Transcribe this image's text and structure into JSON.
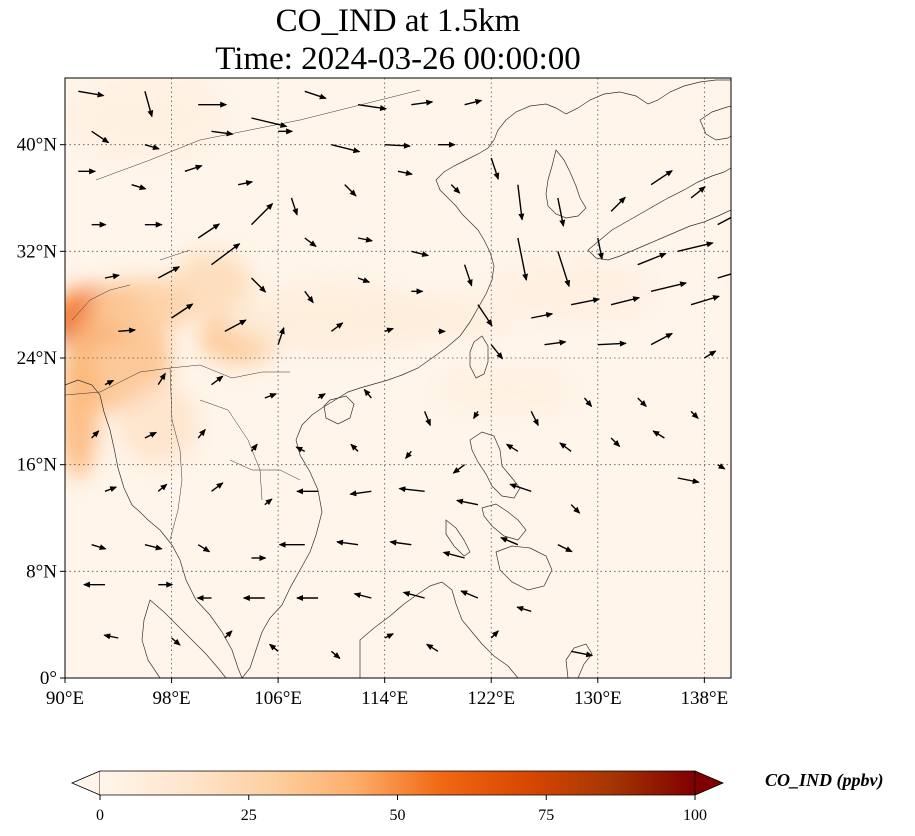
{
  "title": {
    "line1": "CO_IND at 1.5km",
    "line2": "Time: 2024-03-26 00:00:00"
  },
  "map": {
    "lon_range": [
      90,
      140
    ],
    "lat_range": [
      0,
      45
    ],
    "lon_ticks": [
      {
        "value": 90,
        "label": "90°E"
      },
      {
        "value": 98,
        "label": "98°E"
      },
      {
        "value": 106,
        "label": "106°E"
      },
      {
        "value": 114,
        "label": "114°E"
      },
      {
        "value": 122,
        "label": "122°E"
      },
      {
        "value": 130,
        "label": "130°E"
      },
      {
        "value": 138,
        "label": "138°E"
      }
    ],
    "lat_ticks": [
      {
        "value": 0,
        "label": "0°"
      },
      {
        "value": 8,
        "label": "8°N"
      },
      {
        "value": 16,
        "label": "16°N"
      },
      {
        "value": 24,
        "label": "24°N"
      },
      {
        "value": 32,
        "label": "32°N"
      },
      {
        "value": 40,
        "label": "40°N"
      }
    ],
    "background_color": "#fff5ea",
    "gridlines": "dotted",
    "plumes": [
      {
        "lon": 91.5,
        "lat": 26.2,
        "rx": 2.5,
        "ry": 1.4,
        "value": 80
      },
      {
        "lon": 92.5,
        "lat": 27.2,
        "rx": 3.5,
        "ry": 2.2,
        "value": 55
      },
      {
        "lon": 94,
        "lat": 24,
        "rx": 4,
        "ry": 4,
        "value": 35
      },
      {
        "lon": 91,
        "lat": 20,
        "rx": 1.5,
        "ry": 5,
        "value": 40
      },
      {
        "lon": 96,
        "lat": 28,
        "rx": 4,
        "ry": 2,
        "value": 30
      },
      {
        "lon": 103,
        "lat": 25.5,
        "rx": 3,
        "ry": 2,
        "value": 32
      },
      {
        "lon": 101,
        "lat": 29.5,
        "rx": 3,
        "ry": 2.5,
        "value": 22
      },
      {
        "lon": 97,
        "lat": 19,
        "rx": 3,
        "ry": 3,
        "value": 16
      },
      {
        "lon": 110,
        "lat": 27,
        "rx": 8,
        "ry": 2.5,
        "value": 8
      },
      {
        "lon": 118,
        "lat": 27,
        "rx": 5,
        "ry": 1.5,
        "value": 8
      },
      {
        "lon": 128,
        "lat": 29,
        "rx": 6,
        "ry": 2,
        "value": 6
      },
      {
        "lon": 96,
        "lat": 42,
        "rx": 6,
        "ry": 3,
        "value": 5
      },
      {
        "lon": 123,
        "lat": 21.5,
        "rx": 5,
        "ry": 1.5,
        "value": 5
      }
    ],
    "wind_vectors": [
      [
        91,
        44,
        1.8,
        -0.3
      ],
      [
        96,
        44,
        0.5,
        -1.8
      ],
      [
        100,
        43,
        2.0,
        0
      ],
      [
        104,
        42,
        2.5,
        -0.6
      ],
      [
        108,
        44,
        1.5,
        -0.5
      ],
      [
        112,
        43,
        2.0,
        -0.3
      ],
      [
        116,
        43,
        1.5,
        0.2
      ],
      [
        120,
        43,
        1.2,
        0.3
      ],
      [
        92,
        41,
        1.2,
        -0.8
      ],
      [
        96,
        40,
        1.0,
        -0.3
      ],
      [
        101,
        41,
        1.5,
        -0.2
      ],
      [
        106,
        41,
        1.0,
        0
      ],
      [
        110,
        40,
        2.0,
        -0.5
      ],
      [
        114,
        40,
        1.8,
        -0.1
      ],
      [
        118,
        40,
        1.2,
        0
      ],
      [
        122,
        39,
        0.5,
        -1.5
      ],
      [
        91,
        38,
        1.2,
        0
      ],
      [
        95,
        37,
        1.0,
        -0.3
      ],
      [
        99,
        38,
        1.2,
        0.4
      ],
      [
        103,
        37,
        1.0,
        0.2
      ],
      [
        107,
        36,
        0.4,
        -1.2
      ],
      [
        111,
        37,
        0.8,
        -0.8
      ],
      [
        115,
        38,
        1.0,
        -0.2
      ],
      [
        119,
        37,
        0.6,
        -0.6
      ],
      [
        124,
        37,
        0.3,
        -2.5
      ],
      [
        127,
        36,
        0.4,
        -2.0
      ],
      [
        131,
        35,
        1.0,
        1.0
      ],
      [
        134,
        37,
        1.5,
        1.0
      ],
      [
        137,
        36,
        1.0,
        0.8
      ],
      [
        139,
        34,
        1.5,
        0.8
      ],
      [
        92,
        34,
        1.0,
        0
      ],
      [
        96,
        34,
        1.2,
        0
      ],
      [
        100,
        33,
        1.5,
        1.0
      ],
      [
        104,
        34,
        1.5,
        1.5
      ],
      [
        108,
        33,
        0.8,
        -0.6
      ],
      [
        112,
        33,
        1.0,
        -0.2
      ],
      [
        116,
        32,
        1.2,
        -0.3
      ],
      [
        120,
        31,
        0.5,
        -1.5
      ],
      [
        124,
        33,
        0.6,
        -3.0
      ],
      [
        127,
        32,
        0.8,
        -2.5
      ],
      [
        130,
        33,
        0.3,
        -1.5
      ],
      [
        133,
        31,
        2.0,
        0.8
      ],
      [
        136,
        32,
        2.5,
        0.6
      ],
      [
        139,
        30,
        2.0,
        0.6
      ],
      [
        93,
        30,
        1.0,
        0.2
      ],
      [
        97,
        30,
        1.5,
        0.8
      ],
      [
        101,
        31,
        2.0,
        1.5
      ],
      [
        104,
        30,
        1.0,
        -1.0
      ],
      [
        108,
        29,
        0.6,
        -0.8
      ],
      [
        112,
        30,
        0.8,
        -0.3
      ],
      [
        116,
        29,
        0.8,
        0
      ],
      [
        121,
        28,
        1.0,
        -1.5
      ],
      [
        125,
        27,
        1.5,
        0.3
      ],
      [
        128,
        28,
        2.0,
        0.4
      ],
      [
        131,
        28,
        2.0,
        0.5
      ],
      [
        134,
        29,
        2.5,
        0.6
      ],
      [
        137,
        28,
        2.0,
        0.6
      ],
      [
        94,
        26,
        1.2,
        0.1
      ],
      [
        98,
        27,
        1.5,
        1.0
      ],
      [
        102,
        26,
        1.5,
        0.8
      ],
      [
        106,
        25,
        0.4,
        1.2
      ],
      [
        110,
        26,
        0.8,
        0.6
      ],
      [
        114,
        26,
        0.6,
        0.2
      ],
      [
        118,
        26,
        0.5,
        0
      ],
      [
        122,
        25,
        0.8,
        -1.0
      ],
      [
        126,
        25,
        1.5,
        0.2
      ],
      [
        130,
        25,
        2.0,
        0.1
      ],
      [
        134,
        25,
        1.5,
        0.8
      ],
      [
        138,
        24,
        0.8,
        0.5
      ],
      [
        93,
        22,
        0.6,
        0.3
      ],
      [
        97,
        22,
        0.5,
        0.8
      ],
      [
        101,
        22,
        0.8,
        0.6
      ],
      [
        105,
        21,
        0.8,
        0.3
      ],
      [
        109,
        21,
        0.5,
        0.3
      ],
      [
        113,
        21,
        -0.5,
        0.6
      ],
      [
        117,
        20,
        0.4,
        -1.0
      ],
      [
        121,
        20,
        -0.3,
        -0.5
      ],
      [
        125,
        20,
        0.5,
        -1.0
      ],
      [
        129,
        21,
        0.5,
        -0.6
      ],
      [
        133,
        21,
        0.6,
        -0.6
      ],
      [
        137,
        20,
        0.5,
        -0.5
      ],
      [
        92,
        18,
        0.5,
        0.5
      ],
      [
        96,
        18,
        0.8,
        0.4
      ],
      [
        100,
        18,
        0.5,
        0.6
      ],
      [
        104,
        17,
        0.4,
        0.5
      ],
      [
        108,
        17,
        -0.6,
        0.3
      ],
      [
        112,
        17,
        -0.5,
        0.5
      ],
      [
        116,
        17,
        -0.4,
        -0.5
      ],
      [
        120,
        16,
        -0.8,
        -0.6
      ],
      [
        124,
        17,
        -0.8,
        0.5
      ],
      [
        128,
        17,
        -0.8,
        0.6
      ],
      [
        131,
        18,
        0.6,
        -0.6
      ],
      [
        135,
        18,
        -0.8,
        0.5
      ],
      [
        139,
        16,
        0.5,
        -0.3
      ],
      [
        93,
        14,
        0.8,
        0.3
      ],
      [
        97,
        14,
        0.6,
        0.5
      ],
      [
        101,
        14,
        0.8,
        0.6
      ],
      [
        105,
        13,
        0.5,
        0.4
      ],
      [
        109,
        14,
        -1.5,
        0
      ],
      [
        113,
        14,
        -1.5,
        -0.2
      ],
      [
        117,
        14,
        -1.8,
        0.2
      ],
      [
        121,
        13,
        -1.5,
        0.3
      ],
      [
        125,
        14,
        -1.5,
        0.5
      ],
      [
        128,
        13,
        0.6,
        -0.6
      ],
      [
        136,
        15,
        1.5,
        -0.3
      ],
      [
        92,
        10,
        1.0,
        -0.3
      ],
      [
        96,
        10,
        1.2,
        -0.3
      ],
      [
        100,
        10,
        0.8,
        -0.5
      ],
      [
        104,
        9,
        1.0,
        0
      ],
      [
        108,
        10,
        -1.8,
        0
      ],
      [
        112,
        10,
        -1.5,
        0.2
      ],
      [
        116,
        10,
        -1.5,
        0.2
      ],
      [
        120,
        9,
        -1.5,
        0.4
      ],
      [
        124,
        10,
        -1.2,
        0.5
      ],
      [
        127,
        10,
        1.0,
        -0.5
      ],
      [
        93,
        7,
        -1.5,
        0
      ],
      [
        97,
        7,
        1.0,
        0
      ],
      [
        101,
        6,
        -1.0,
        0
      ],
      [
        105,
        6,
        -1.5,
        0
      ],
      [
        109,
        6,
        -1.5,
        0
      ],
      [
        113,
        6,
        -1.2,
        0.3
      ],
      [
        117,
        6,
        -1.5,
        0.4
      ],
      [
        121,
        6,
        -1.2,
        0.5
      ],
      [
        125,
        5,
        -1.0,
        0.3
      ],
      [
        94,
        3,
        -1.0,
        0.2
      ],
      [
        98,
        3,
        0.6,
        -0.5
      ],
      [
        102,
        3,
        0.5,
        0.5
      ],
      [
        106,
        2,
        -0.6,
        0.5
      ],
      [
        110,
        2,
        0.6,
        -0.5
      ],
      [
        114,
        3,
        0.6,
        0.3
      ],
      [
        118,
        2,
        -0.8,
        0.5
      ],
      [
        122,
        3,
        0.5,
        0.5
      ],
      [
        128,
        2,
        1.5,
        -0.3
      ]
    ]
  },
  "colorbar": {
    "label": "CO_IND (ppbv)",
    "vmin": 0,
    "vmax": 100,
    "ticks": [
      0,
      25,
      50,
      75,
      100
    ],
    "tick_labels": [
      "0",
      "25",
      "50",
      "75",
      "100"
    ],
    "colors": [
      "#fff5eb",
      "#fee6ce",
      "#fdd0a2",
      "#fdae6b",
      "#f16913",
      "#d94801",
      "#a63603",
      "#7f0000"
    ],
    "extend": "both"
  }
}
